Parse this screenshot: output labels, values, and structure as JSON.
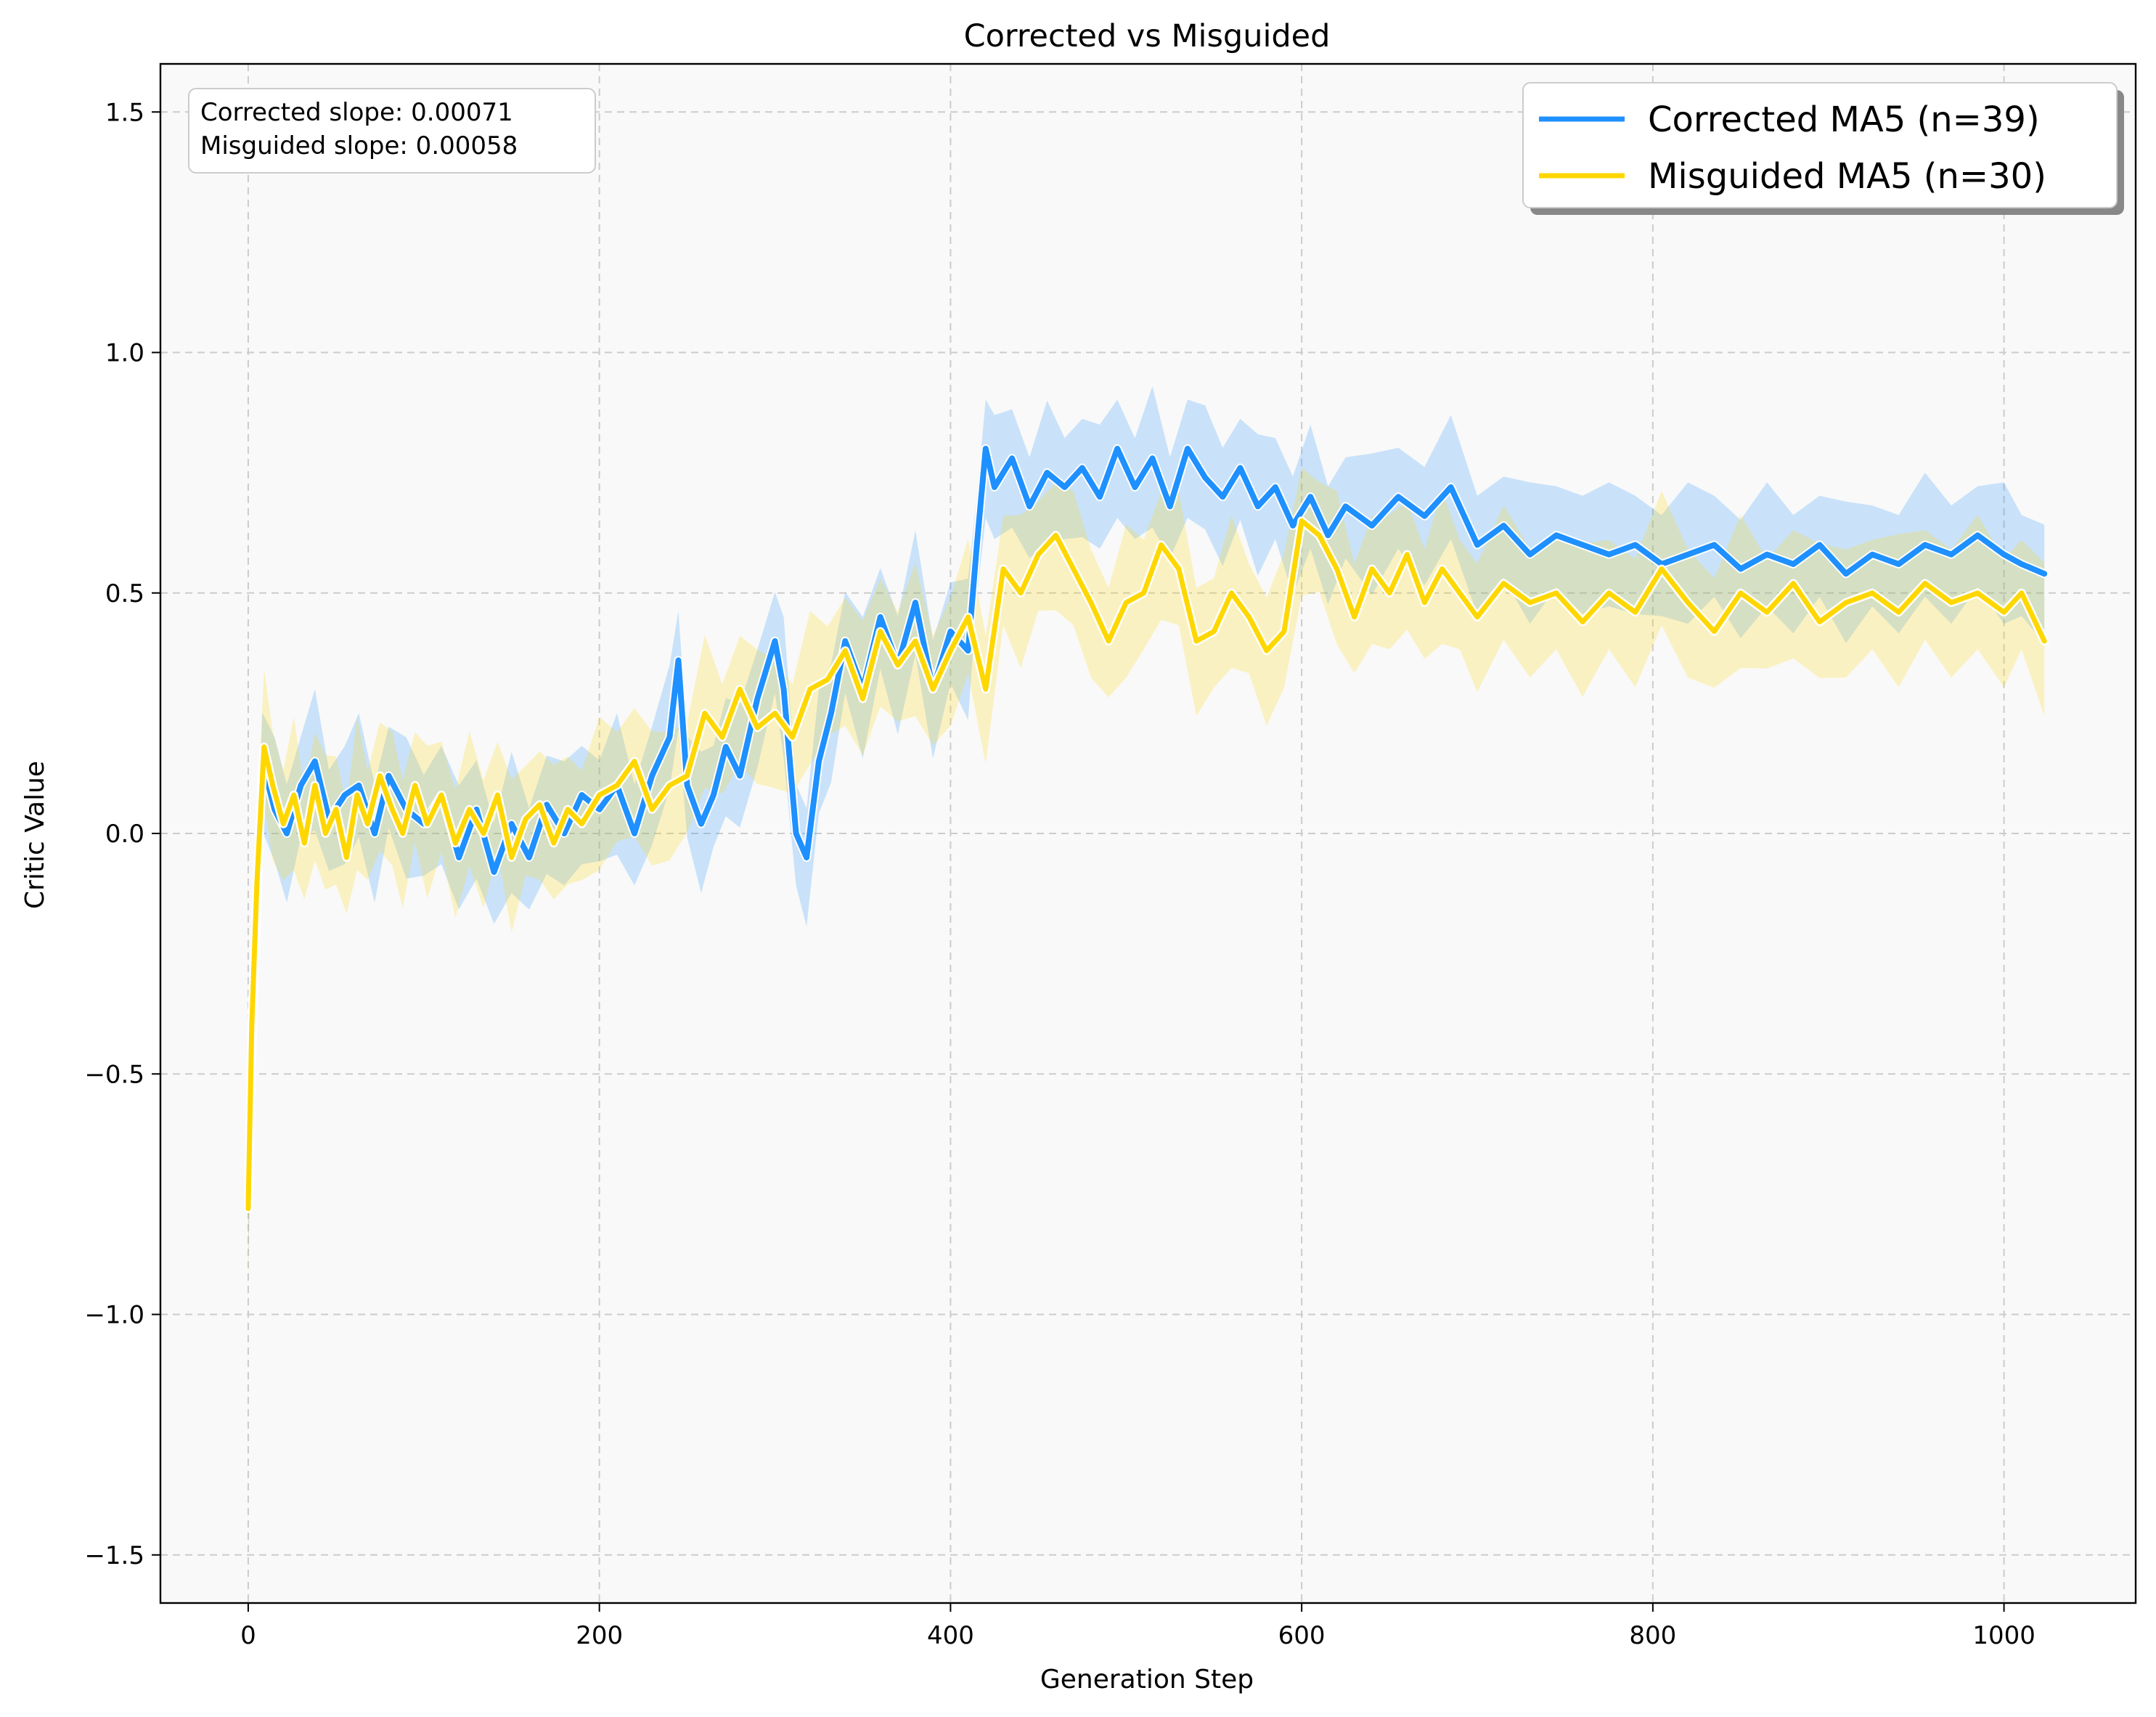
{
  "chart_data": {
    "type": "line",
    "title": "Corrected vs Misguided",
    "xlabel": "Generation Step",
    "ylabel": "Critic Value",
    "xlim": [
      -50,
      1075
    ],
    "ylim": [
      -1.6,
      1.6
    ],
    "xticks": [
      0,
      200,
      400,
      600,
      800,
      1000
    ],
    "yticks": [
      -1.5,
      -1.0,
      -0.5,
      0.0,
      0.5,
      1.0,
      1.5
    ],
    "xtick_labels": [
      "0",
      "200",
      "400",
      "600",
      "800",
      "1000"
    ],
    "ytick_labels": [
      "−1.5",
      "−1.0",
      "−0.5",
      "0.0",
      "0.5",
      "1.0",
      "1.5"
    ],
    "grid": true,
    "legend_position": "top-right",
    "annotations": [
      "Corrected slope: 0.00071",
      "Misguided slope: 0.00058"
    ],
    "series": [
      {
        "name": "Corrected MA5 (n=39)",
        "color": "#1E90FF",
        "band_color": "#1E90FF",
        "x": [
          0,
          3,
          8,
          15,
          22,
          30,
          38,
          46,
          55,
          63,
          72,
          80,
          90,
          100,
          110,
          120,
          130,
          140,
          150,
          160,
          170,
          180,
          190,
          200,
          210,
          220,
          230,
          240,
          245,
          250,
          258,
          265,
          272,
          280,
          290,
          300,
          305,
          312,
          318,
          325,
          332,
          340,
          350,
          360,
          370,
          380,
          390,
          400,
          410,
          415,
          420,
          425,
          435,
          445,
          455,
          465,
          475,
          485,
          495,
          505,
          515,
          525,
          535,
          545,
          555,
          565,
          575,
          585,
          595,
          605,
          615,
          625,
          640,
          655,
          670,
          685,
          700,
          715,
          730,
          745,
          760,
          775,
          790,
          805,
          820,
          835,
          850,
          865,
          880,
          895,
          910,
          925,
          940,
          955,
          970,
          985,
          1000,
          1010,
          1023
        ],
        "values": [
          -0.75,
          -0.35,
          0.15,
          0.05,
          0.0,
          0.1,
          0.15,
          0.03,
          0.08,
          0.1,
          0.0,
          0.12,
          0.05,
          0.02,
          0.08,
          -0.05,
          0.05,
          -0.08,
          0.02,
          -0.05,
          0.06,
          0.0,
          0.08,
          0.05,
          0.1,
          0.0,
          0.12,
          0.2,
          0.36,
          0.1,
          0.02,
          0.08,
          0.18,
          0.12,
          0.28,
          0.4,
          0.3,
          0.0,
          -0.05,
          0.15,
          0.25,
          0.4,
          0.3,
          0.45,
          0.35,
          0.48,
          0.3,
          0.42,
          0.38,
          0.6,
          0.8,
          0.72,
          0.78,
          0.68,
          0.75,
          0.72,
          0.76,
          0.7,
          0.8,
          0.72,
          0.78,
          0.68,
          0.8,
          0.74,
          0.7,
          0.76,
          0.68,
          0.72,
          0.64,
          0.7,
          0.62,
          0.68,
          0.64,
          0.7,
          0.66,
          0.72,
          0.6,
          0.64,
          0.58,
          0.62,
          0.6,
          0.58,
          0.6,
          0.56,
          0.58,
          0.6,
          0.55,
          0.58,
          0.56,
          0.6,
          0.54,
          0.58,
          0.56,
          0.6,
          0.58,
          0.62,
          0.58,
          0.56,
          0.54
        ]
      },
      {
        "name": "Misguided MA5 (n=30)",
        "color": "#FFD700",
        "band_color": "#FFD700",
        "x": [
          0,
          2,
          5,
          9,
          14,
          20,
          26,
          32,
          38,
          44,
          50,
          56,
          62,
          68,
          75,
          82,
          88,
          95,
          102,
          110,
          118,
          126,
          134,
          142,
          150,
          158,
          166,
          174,
          182,
          190,
          200,
          210,
          220,
          230,
          240,
          250,
          260,
          270,
          280,
          290,
          300,
          310,
          320,
          330,
          340,
          350,
          360,
          370,
          380,
          390,
          400,
          410,
          420,
          430,
          440,
          450,
          460,
          470,
          480,
          490,
          500,
          510,
          520,
          530,
          540,
          550,
          560,
          570,
          580,
          590,
          600,
          610,
          620,
          630,
          640,
          650,
          660,
          670,
          680,
          690,
          700,
          715,
          730,
          745,
          760,
          775,
          790,
          805,
          820,
          835,
          850,
          865,
          880,
          895,
          910,
          925,
          940,
          955,
          970,
          985,
          1000,
          1010,
          1023
        ],
        "values": [
          -0.78,
          -0.4,
          -0.1,
          0.18,
          0.1,
          0.02,
          0.08,
          -0.02,
          0.1,
          0.0,
          0.05,
          -0.05,
          0.08,
          0.02,
          0.12,
          0.05,
          0.0,
          0.1,
          0.02,
          0.08,
          -0.02,
          0.05,
          0.0,
          0.08,
          -0.05,
          0.03,
          0.06,
          -0.02,
          0.05,
          0.02,
          0.08,
          0.1,
          0.15,
          0.05,
          0.1,
          0.12,
          0.25,
          0.2,
          0.3,
          0.22,
          0.25,
          0.2,
          0.3,
          0.32,
          0.38,
          0.28,
          0.42,
          0.35,
          0.4,
          0.3,
          0.38,
          0.45,
          0.3,
          0.55,
          0.5,
          0.58,
          0.62,
          0.55,
          0.48,
          0.4,
          0.48,
          0.5,
          0.6,
          0.55,
          0.4,
          0.42,
          0.5,
          0.45,
          0.38,
          0.42,
          0.65,
          0.62,
          0.55,
          0.45,
          0.55,
          0.5,
          0.58,
          0.48,
          0.55,
          0.5,
          0.45,
          0.52,
          0.48,
          0.5,
          0.44,
          0.5,
          0.46,
          0.55,
          0.48,
          0.42,
          0.5,
          0.46,
          0.52,
          0.44,
          0.48,
          0.5,
          0.46,
          0.52,
          0.48,
          0.5,
          0.46,
          0.5,
          0.4
        ]
      }
    ]
  }
}
